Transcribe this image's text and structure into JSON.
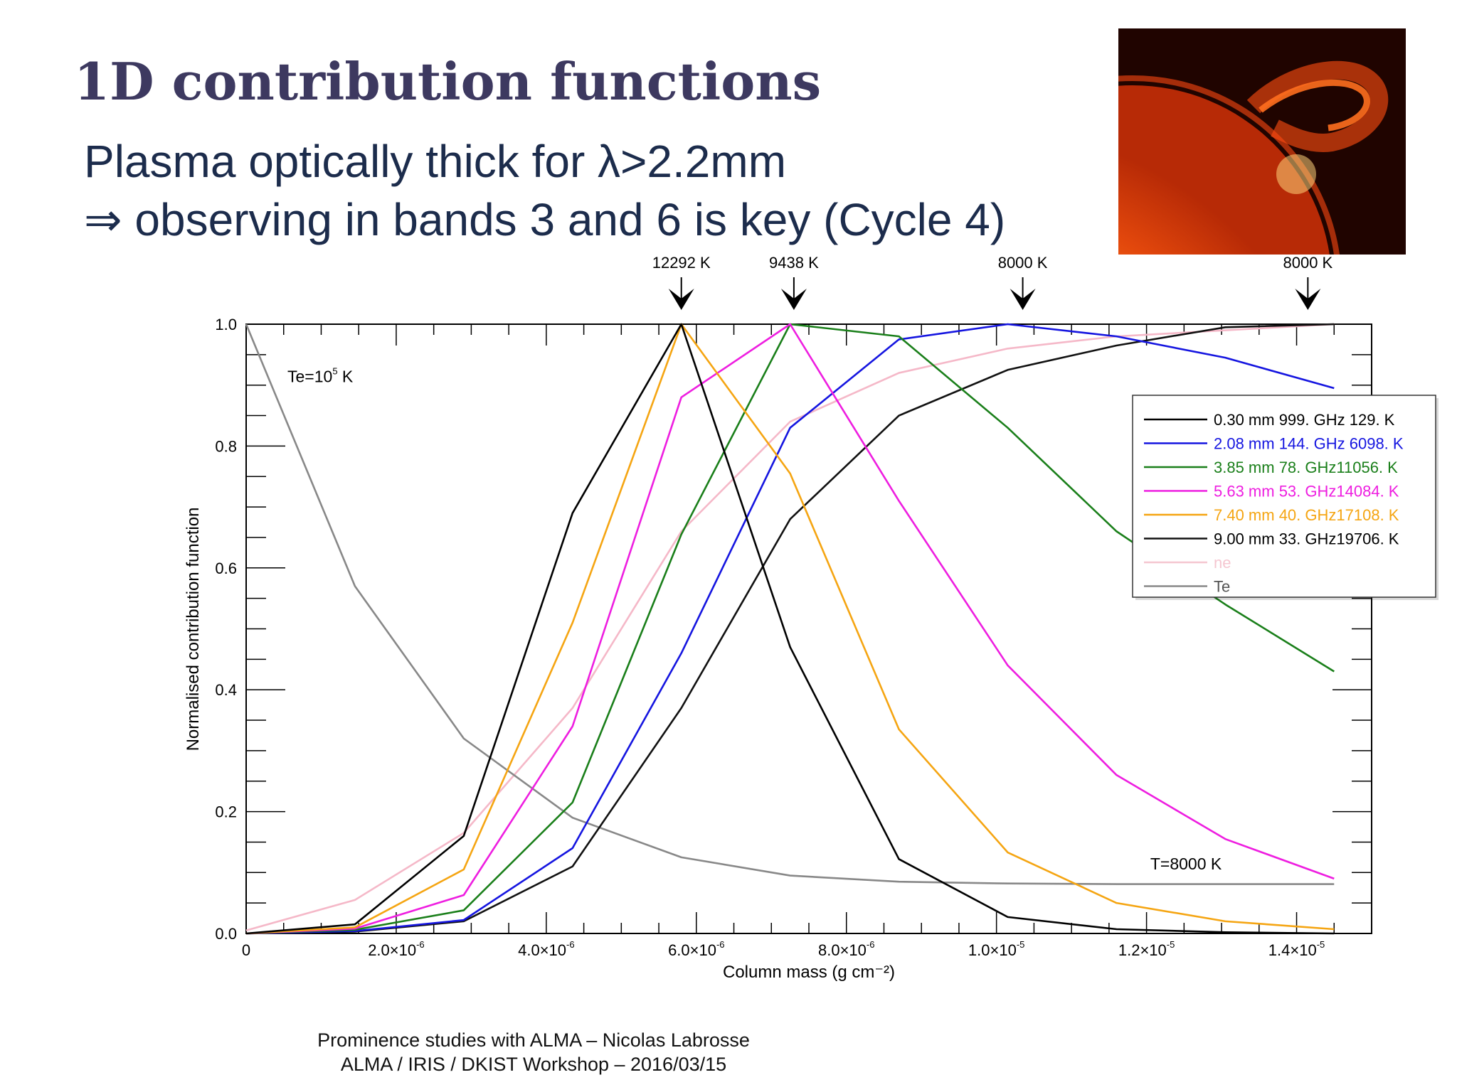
{
  "slide": {
    "title": "1D contribution functions",
    "line1": "Plasma optically thick for λ>2.2mm",
    "line2": "⇒ observing in bands 3 and 6 is key (Cycle 4)",
    "footer1": "Prominence studies with ALMA – Nicolas Labrosse",
    "footer2": "ALMA / IRIS / DKIST Workshop – 2016/03/15",
    "image_icon": "solar-prominence-photo"
  },
  "chart_data": {
    "type": "line",
    "xlabel": "Column mass (g cm⁻²)",
    "ylabel": "Normalised contribution function",
    "xlim": [
      0,
      1.5e-05
    ],
    "ylim": [
      0,
      1.0
    ],
    "x_ticks": [
      {
        "value": 0,
        "label": "0",
        "exp": ""
      },
      {
        "value": 2e-06,
        "label": "2.0×10",
        "exp": "-6"
      },
      {
        "value": 4e-06,
        "label": "4.0×10",
        "exp": "-6"
      },
      {
        "value": 6e-06,
        "label": "6.0×10",
        "exp": "-6"
      },
      {
        "value": 8e-06,
        "label": "8.0×10",
        "exp": "-6"
      },
      {
        "value": 1e-05,
        "label": "1.0×10",
        "exp": "-5"
      },
      {
        "value": 1.2e-05,
        "label": "1.2×10",
        "exp": "-5"
      },
      {
        "value": 1.4e-05,
        "label": "1.4×10",
        "exp": "-5"
      }
    ],
    "y_ticks": [
      {
        "value": 0.0,
        "label": "0.0"
      },
      {
        "value": 0.2,
        "label": "0.2"
      },
      {
        "value": 0.4,
        "label": "0.4"
      },
      {
        "value": 0.6,
        "label": "0.6"
      },
      {
        "value": 0.8,
        "label": "0.8"
      },
      {
        "value": 1.0,
        "label": "1.0"
      }
    ],
    "x": [
      0,
      1.45e-06,
      2.9e-06,
      4.35e-06,
      5.8e-06,
      7.25e-06,
      8.7e-06,
      1.015e-05,
      1.16e-05,
      1.305e-05,
      1.45e-05
    ],
    "series": [
      {
        "name": "ne",
        "color": "#f5b8c8",
        "values": [
          0.005,
          0.055,
          0.165,
          0.37,
          0.66,
          0.84,
          0.92,
          0.96,
          0.98,
          0.99,
          1.0
        ]
      },
      {
        "name": "Te",
        "color": "#888888",
        "values": [
          1.0,
          0.57,
          0.32,
          0.19,
          0.125,
          0.095,
          0.085,
          0.082,
          0.081,
          0.081,
          0.081
        ]
      },
      {
        "name": "9.00 mm 33. GHz19706. K",
        "color": "#111111",
        "values": [
          0.0,
          0.003,
          0.02,
          0.11,
          0.37,
          0.68,
          0.85,
          0.925,
          0.965,
          0.995,
          1.0
        ]
      },
      {
        "name": "2.08 mm 144. GHz 6098. K",
        "color": "#1515e0",
        "values": [
          0.0,
          0.004,
          0.022,
          0.14,
          0.46,
          0.83,
          0.975,
          1.0,
          0.98,
          0.945,
          0.895
        ]
      },
      {
        "name": "3.85 mm 78. GHz11056. K",
        "color": "#1a7f1a",
        "values": [
          0.0,
          0.006,
          0.038,
          0.215,
          0.655,
          1.0,
          0.98,
          0.83,
          0.66,
          0.54,
          0.43
        ]
      },
      {
        "name": "5.63 mm 53. GHz14084. K",
        "color": "#ee1ee0",
        "values": [
          0.0,
          0.008,
          0.063,
          0.34,
          0.88,
          1.0,
          0.71,
          0.44,
          0.26,
          0.155,
          0.09
        ]
      },
      {
        "name": "7.40 mm 40. GHz17108. K",
        "color": "#f5a512",
        "values": [
          0.0,
          0.01,
          0.105,
          0.51,
          1.0,
          0.755,
          0.335,
          0.133,
          0.05,
          0.02,
          0.007
        ]
      },
      {
        "name": "0.30 mm 999. GHz 129. K",
        "color": "#000000",
        "values": [
          0.0,
          0.015,
          0.16,
          0.69,
          1.0,
          0.47,
          0.122,
          0.027,
          0.007,
          0.002,
          0.0
        ]
      }
    ],
    "legend": {
      "placement": "right",
      "items": [
        {
          "label": "0.30 mm 999. GHz  129. K",
          "color": "#000000",
          "text_color": "#000000"
        },
        {
          "label": "2.08 mm 144. GHz 6098. K",
          "color": "#1515e0",
          "text_color": "#1515e0"
        },
        {
          "label": "3.85 mm  78. GHz11056. K",
          "color": "#1a7f1a",
          "text_color": "#1a7f1a"
        },
        {
          "label": "5.63 mm  53. GHz14084. K",
          "color": "#ee1ee0",
          "text_color": "#ee1ee0"
        },
        {
          "label": "7.40 mm  40. GHz17108. K",
          "color": "#f5a512",
          "text_color": "#f5a512"
        },
        {
          "label": "9.00 mm  33. GHz19706. K",
          "color": "#111111",
          "text_color": "#000000"
        },
        {
          "label": "ne",
          "color": "#f5c6d0",
          "text_color": "#f5c6d0"
        },
        {
          "label": "Te",
          "color": "#888888",
          "text_color": "#555555"
        }
      ]
    },
    "annotations": [
      {
        "text": "Te=10",
        "exp": "5",
        "suffix": " K",
        "x": 5.5e-07,
        "y": 0.905
      },
      {
        "text": "T=8000 K",
        "x": 1.205e-05,
        "y": 0.105
      }
    ],
    "arrows": [
      {
        "label": "12292 K",
        "x": 5.8e-06
      },
      {
        "label": "9438 K",
        "x": 7.3e-06
      },
      {
        "label": "8000 K",
        "x": 1.035e-05
      },
      {
        "label": "8000 K",
        "x": 1.415e-05
      }
    ]
  }
}
